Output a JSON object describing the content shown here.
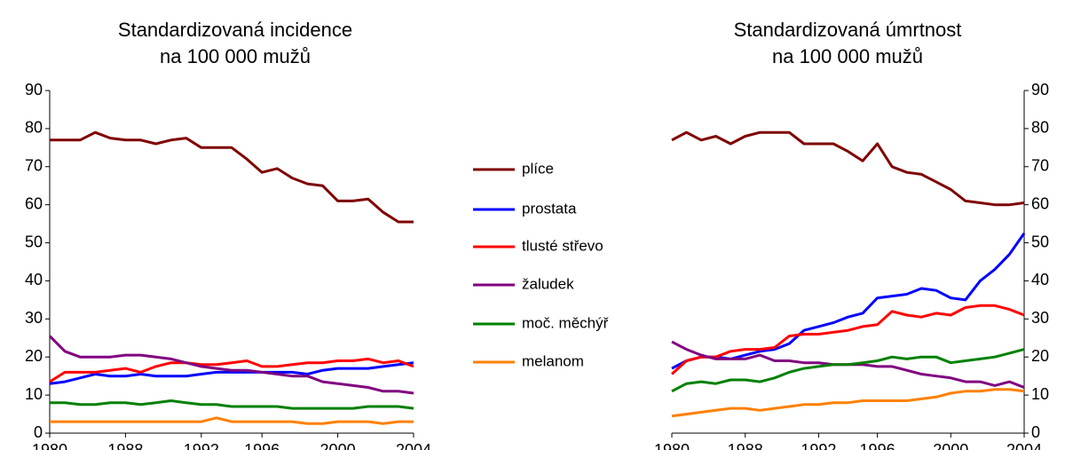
{
  "chart_data": [
    {
      "type": "line",
      "title": "Standardizovaná incidence",
      "subtitle": "na 100 000 mužů",
      "yaxis_side": "left",
      "categories": [
        "1980",
        null,
        null,
        null,
        null,
        "1988",
        null,
        null,
        null,
        null,
        "1992",
        null,
        null,
        null,
        "1996",
        null,
        null,
        null,
        null,
        "2000",
        null,
        null,
        null,
        null,
        "2004"
      ],
      "ylim": [
        0,
        90
      ],
      "yticks": [
        0,
        10,
        20,
        30,
        40,
        50,
        60,
        70,
        80,
        90
      ],
      "series": [
        {
          "name": "plíce",
          "color": "#7f0000",
          "values": [
            77,
            77,
            77,
            79,
            77.5,
            77,
            77,
            76,
            77,
            77.5,
            75,
            75,
            75,
            72,
            68.5,
            69.5,
            67,
            65.5,
            65,
            61,
            61,
            61.5,
            58,
            55.5,
            55.5
          ]
        },
        {
          "name": "prostata",
          "color": "#0000ff",
          "values": [
            13,
            13.5,
            14.5,
            15.5,
            15,
            15,
            15.5,
            15,
            15,
            15,
            15.5,
            16,
            16,
            16,
            16,
            16,
            16,
            15.5,
            16.5,
            17,
            17,
            17,
            17.5,
            18,
            18.5
          ]
        },
        {
          "name": "tlusté střevo",
          "color": "#ff0000",
          "values": [
            13.5,
            16,
            16,
            16,
            16.5,
            17,
            16,
            17.5,
            18.5,
            18.5,
            18,
            18,
            18.5,
            19,
            17.5,
            17.5,
            18,
            18.5,
            18.5,
            19,
            19,
            19.5,
            18.5,
            19,
            17.5
          ]
        },
        {
          "name": "žaludek",
          "color": "#800080",
          "values": [
            25.5,
            21.5,
            20,
            20,
            20,
            20.5,
            20.5,
            20,
            19.5,
            18.5,
            17.5,
            17,
            16.5,
            16.5,
            16,
            15.5,
            15,
            15,
            13.5,
            13,
            12.5,
            12,
            11,
            11,
            10.5
          ]
        },
        {
          "name": "moč. měchýř",
          "color": "#008000",
          "values": [
            8,
            8,
            7.5,
            7.5,
            8,
            8,
            7.5,
            8,
            8.5,
            8,
            7.5,
            7.5,
            7,
            7,
            7,
            7,
            6.5,
            6.5,
            6.5,
            6.5,
            6.5,
            7,
            7,
            7,
            6.5
          ]
        },
        {
          "name": "melanom",
          "color": "#ff8000",
          "values": [
            3,
            3,
            3,
            3,
            3,
            3,
            3,
            3,
            3,
            3,
            3,
            4,
            3,
            3,
            3,
            3,
            3,
            2.5,
            2.5,
            3,
            3,
            3,
            2.5,
            3,
            3
          ]
        }
      ]
    },
    {
      "type": "line",
      "title": "Standardizovaná úmrtnost",
      "subtitle": "na 100 000 mužů",
      "yaxis_side": "right",
      "categories": [
        "1980",
        null,
        null,
        null,
        null,
        "1988",
        null,
        null,
        null,
        null,
        "1992",
        null,
        null,
        null,
        "1996",
        null,
        null,
        null,
        null,
        "2000",
        null,
        null,
        null,
        null,
        "2004"
      ],
      "ylim": [
        0,
        90
      ],
      "yticks": [
        0,
        10,
        20,
        30,
        40,
        50,
        60,
        70,
        80,
        90
      ],
      "series": [
        {
          "color": "#7f0000",
          "values": [
            77,
            79,
            77,
            78,
            76,
            78,
            79,
            79,
            79,
            76,
            76,
            76,
            74,
            71.5,
            76,
            70,
            68.5,
            68,
            66,
            64,
            61,
            60.5,
            60,
            60,
            60.5
          ]
        },
        {
          "color": "#0000ff",
          "values": [
            17,
            19,
            20,
            20,
            19.5,
            20.5,
            21.5,
            22,
            23.5,
            27,
            28,
            29,
            30.5,
            31.5,
            35.5,
            36,
            36.5,
            38,
            37.5,
            35.5,
            35,
            40,
            43,
            47,
            52.5
          ]
        },
        {
          "color": "#ff0000",
          "values": [
            15.5,
            19,
            20,
            20,
            21.5,
            22,
            22,
            22.5,
            25.5,
            26,
            26,
            26.5,
            27,
            28,
            28.5,
            32,
            31,
            30.5,
            31.5,
            31,
            33,
            33.5,
            33.5,
            32.5,
            31
          ]
        },
        {
          "color": "#800080",
          "values": [
            24,
            22,
            20.5,
            19.5,
            19.5,
            19.5,
            20.5,
            19,
            19,
            18.5,
            18.5,
            18,
            18,
            18,
            17.5,
            17.5,
            16.5,
            15.5,
            15,
            14.5,
            13.5,
            13.5,
            12.5,
            13.5,
            12
          ]
        },
        {
          "color": "#008000",
          "values": [
            11,
            13,
            13.5,
            13,
            14,
            14,
            13.5,
            14.5,
            16,
            17,
            17.5,
            18,
            18,
            18.5,
            19,
            20,
            19.5,
            20,
            20,
            18.5,
            19,
            19.5,
            20,
            21,
            22
          ]
        },
        {
          "color": "#ff8000",
          "values": [
            4.5,
            5,
            5.5,
            6,
            6.5,
            6.5,
            6,
            6.5,
            7,
            7.5,
            7.5,
            8,
            8,
            8.5,
            8.5,
            8.5,
            8.5,
            9,
            9.5,
            10.5,
            11,
            11,
            11.5,
            11.5,
            11
          ]
        }
      ]
    }
  ]
}
